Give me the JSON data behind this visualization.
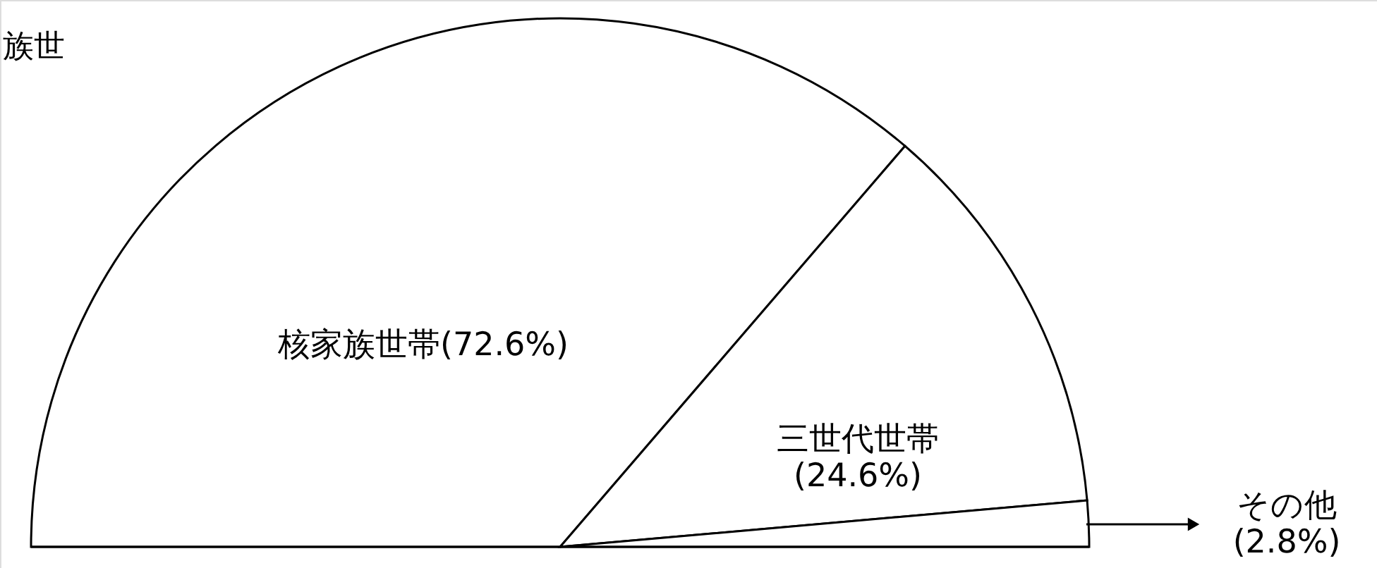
{
  "chart_data": {
    "type": "pie",
    "title": "族世",
    "categories": [
      "核家族世帯",
      "三世代世帯",
      "その他"
    ],
    "values": [
      72.6,
      24.6,
      2.8
    ],
    "value_labels": [
      "(72.6%)",
      "(24.6%)",
      "(2.8%)"
    ],
    "colors": [
      "#ffffff",
      "#ffffff",
      "#ffffff"
    ]
  }
}
